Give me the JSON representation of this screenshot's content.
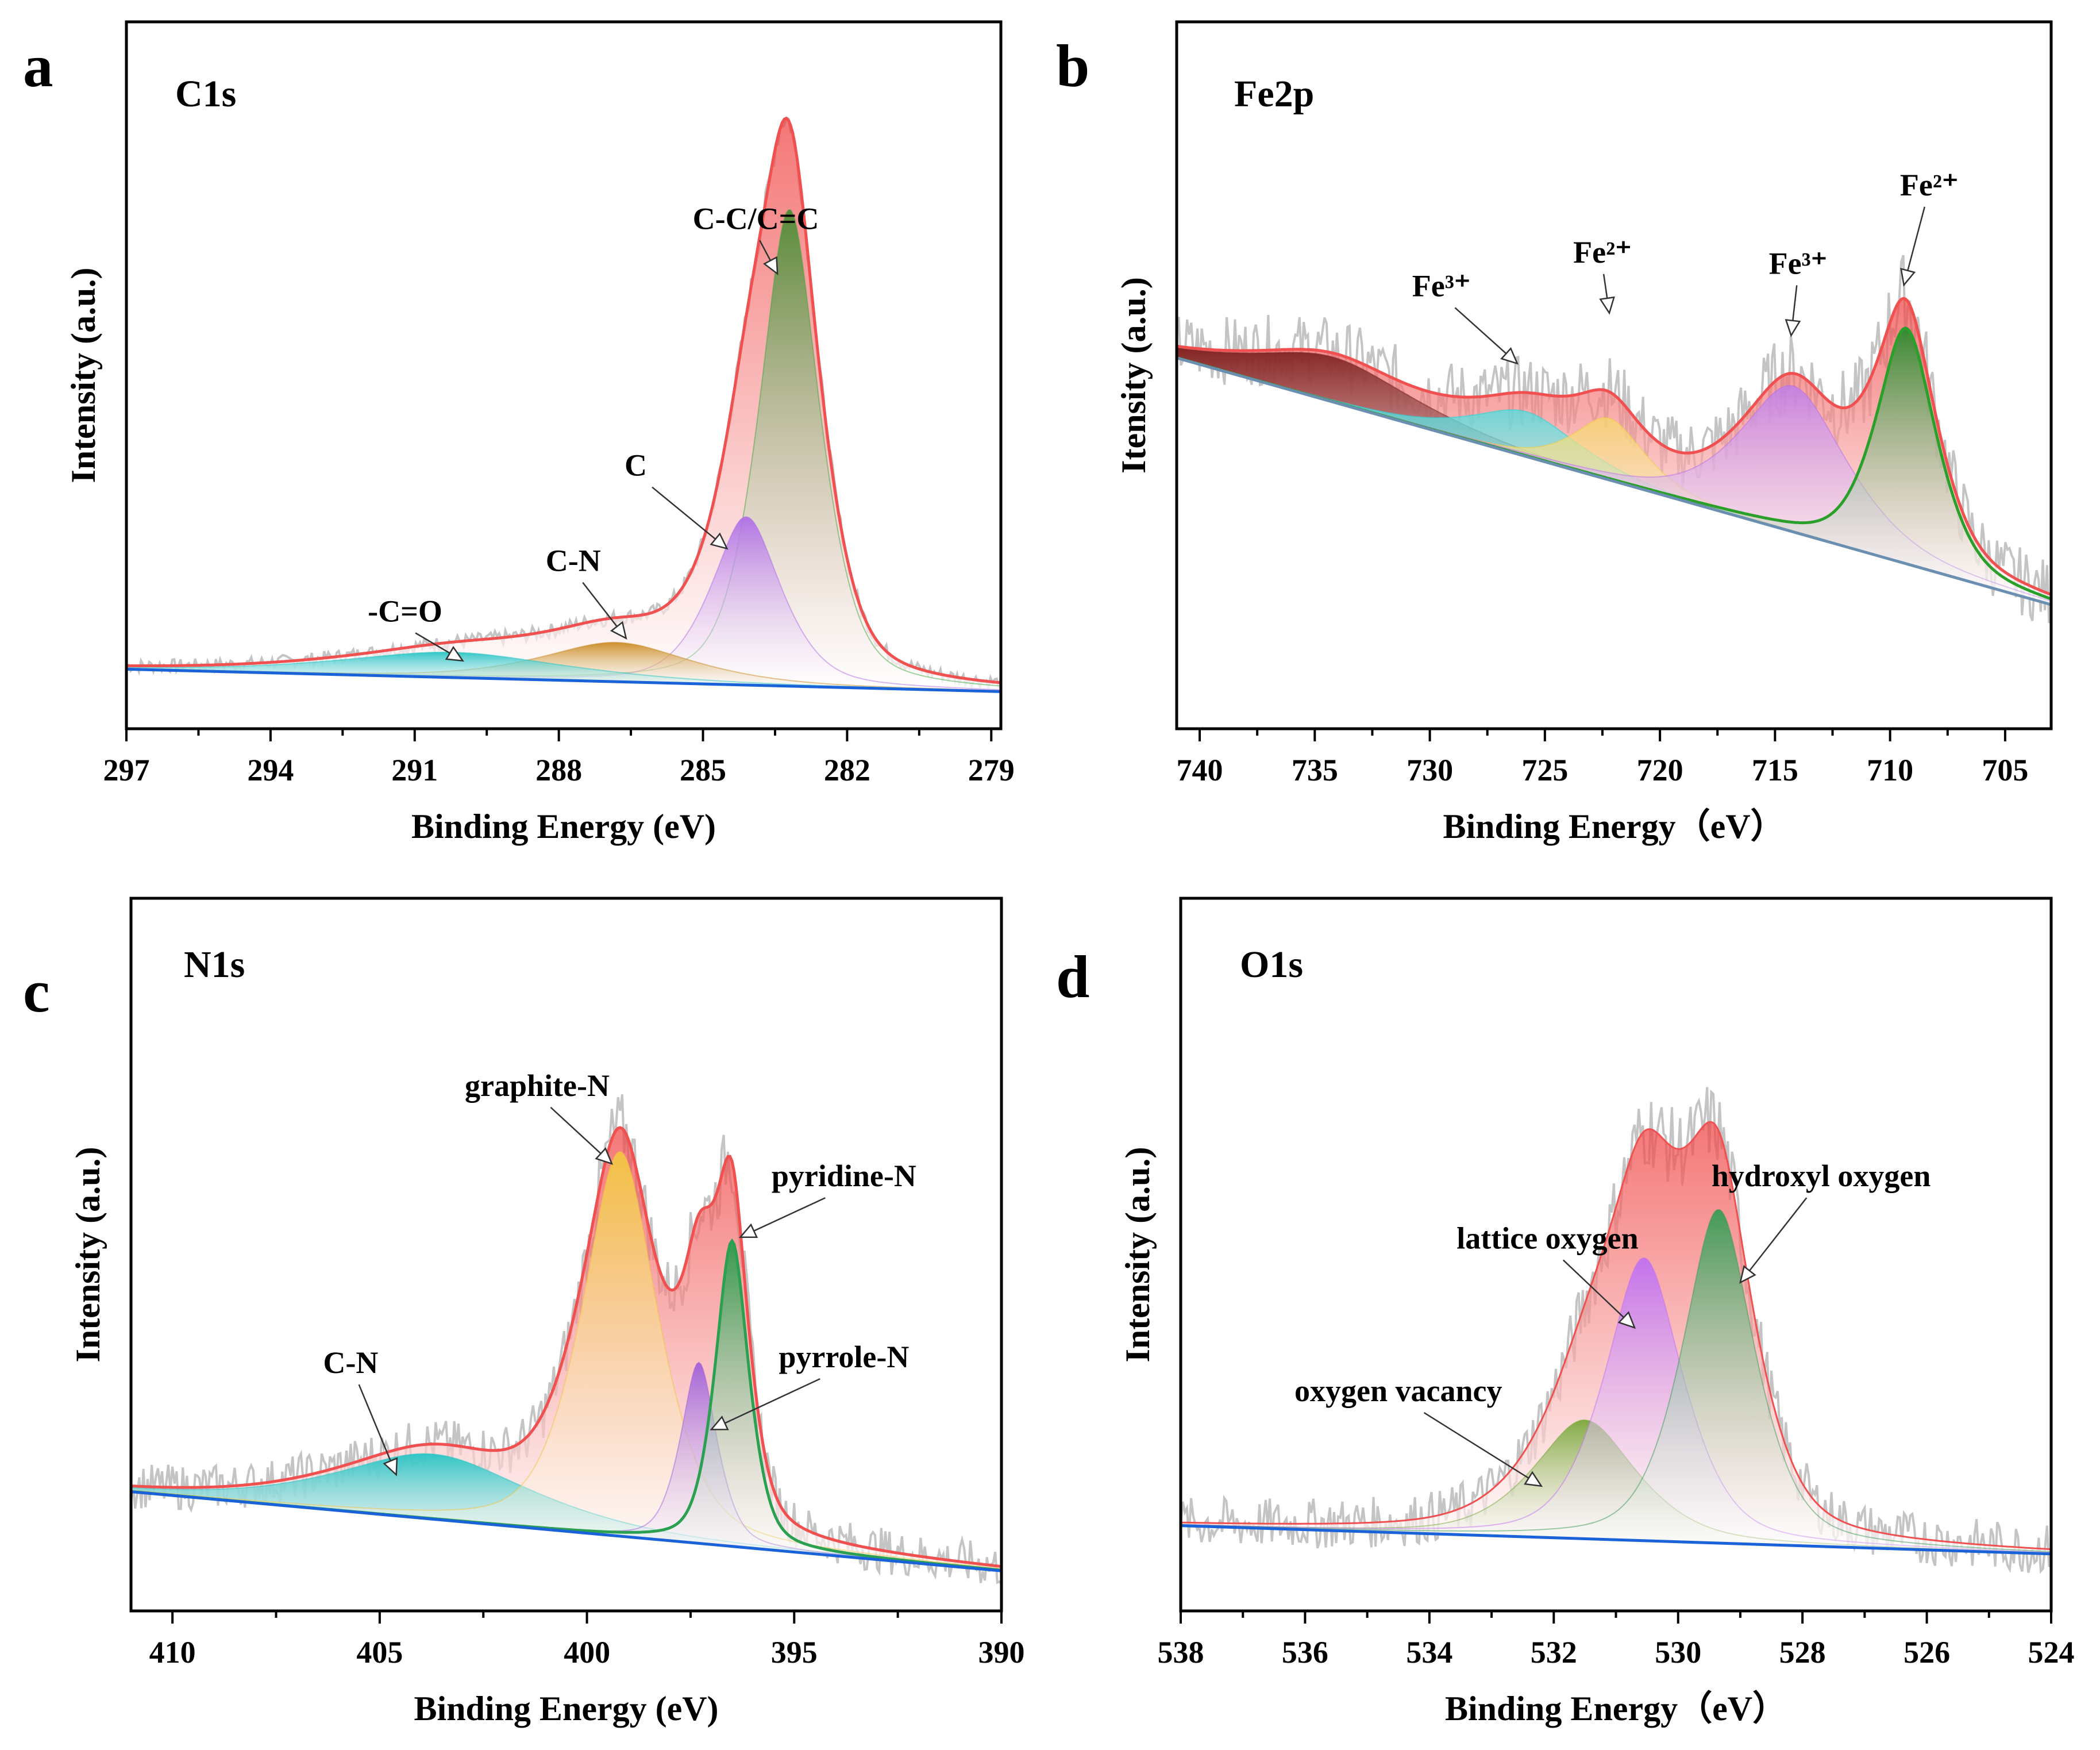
{
  "chart_data": [
    {
      "panel": "a",
      "title": "C1s",
      "type": "area",
      "xlabel": "Binding Energy (eV)",
      "ylabel": "Intensity (a.u.)",
      "xlim": [
        297,
        278.8
      ],
      "ylim": [
        0,
        100
      ],
      "xticks": [
        297,
        294,
        291,
        288,
        285,
        282,
        279
      ],
      "xtick_labels": [
        "297",
        "294",
        "291",
        "288",
        "285",
        "282",
        "279"
      ],
      "x_reversed": true,
      "baseline": {
        "start": 5.5,
        "end": 1.5
      },
      "raw_noise": 1.2,
      "series": [
        {
          "center": 283.2,
          "height": 85,
          "width": 0.65,
          "color": "#4e8a34",
          "edge": "#3ea83e",
          "show_line": false
        },
        {
          "center": 284.1,
          "height": 30,
          "width": 0.75,
          "color": "#b06ee6",
          "edge": "#b06ee6",
          "show_line": false
        },
        {
          "center": 286.8,
          "height": 7,
          "width": 1.6,
          "color": "#c98a22",
          "edge": "#c98a22",
          "show_line": false
        },
        {
          "center": 290.2,
          "height": 4.5,
          "width": 2.4,
          "color": "#27c4c4",
          "edge": "#27c4c4",
          "show_line": false
        }
      ],
      "annotations": [
        {
          "text": "C-C/C=C",
          "x": 283.9,
          "y": 84,
          "ax": 283.45,
          "ay": 76
        },
        {
          "text": "C",
          "x": 286.4,
          "y": 40,
          "ax": 284.5,
          "ay": 27
        },
        {
          "text": "C-N",
          "x": 287.7,
          "y": 23,
          "ax": 286.6,
          "ay": 11
        },
        {
          "text": "-C=O",
          "x": 291.2,
          "y": 14,
          "ax": 290.0,
          "ay": 7
        }
      ]
    },
    {
      "panel": "b",
      "title": "Fe2p",
      "type": "area",
      "xlabel": "Binding Energy（eV）",
      "ylabel": "Itensity (a.u.)",
      "xlim": [
        741,
        703
      ],
      "ylim": [
        0,
        100
      ],
      "xticks": [
        740,
        735,
        730,
        725,
        720,
        715,
        710,
        705
      ],
      "xtick_labels": [
        "740",
        "735",
        "730",
        "725",
        "720",
        "715",
        "710",
        "705"
      ],
      "x_reversed": true,
      "baseline": {
        "start": 61,
        "end": 17
      },
      "raw_noise": 6,
      "series": [
        {
          "center": 734.2,
          "height": 8,
          "width": 3.6,
          "color": "#7e1f1f",
          "edge": "#7e1f1f",
          "show_line": false
        },
        {
          "center": 725.8,
          "height": 8,
          "width": 2.4,
          "color": "#22d6d6",
          "edge": "#22d6d6",
          "show_line": false
        },
        {
          "center": 722.2,
          "height": 11,
          "width": 1.6,
          "color": "#f2cc3c",
          "edge": "#f2cc3c",
          "show_line": false
        },
        {
          "center": 714.2,
          "height": 26,
          "width": 2.4,
          "color": "#b86ee6",
          "edge": "#b86ee6",
          "show_line": false
        },
        {
          "center": 709.3,
          "height": 42,
          "width": 1.35,
          "color": "#2e8a2e",
          "edge": "#2aa02a",
          "show_line": true
        }
      ],
      "annotations": [
        {
          "text": "Fe³⁺",
          "x": 729.5,
          "y": 72,
          "ax": 726.2,
          "ay": 60
        },
        {
          "text": "Fe²⁺",
          "x": 722.5,
          "y": 78,
          "ax": 722.2,
          "ay": 69
        },
        {
          "text": "Fe³⁺",
          "x": 714.0,
          "y": 76,
          "ax": 714.3,
          "ay": 65
        },
        {
          "text": "Fe²⁺",
          "x": 708.3,
          "y": 90,
          "ax": 709.4,
          "ay": 74
        }
      ]
    },
    {
      "panel": "c",
      "title": "N1s",
      "type": "area",
      "xlabel": "Binding Energy (eV)",
      "ylabel": "Intensity (a.u.)",
      "xlim": [
        411,
        390
      ],
      "ylim": [
        0,
        100
      ],
      "xticks": [
        410,
        405,
        400,
        395,
        390
      ],
      "xtick_labels": [
        "410",
        "405",
        "400",
        "395",
        "390"
      ],
      "x_reversed": true,
      "baseline": {
        "start": 16,
        "end": 2
      },
      "raw_noise": 4,
      "series": [
        {
          "center": 403.7,
          "height": 11.5,
          "width": 2.4,
          "color": "#27c4c4",
          "edge": "#27c4c4",
          "show_line": false
        },
        {
          "center": 399.2,
          "height": 68,
          "width": 0.95,
          "color": "#f2c440",
          "edge": "#f2c440",
          "show_line": false
        },
        {
          "center": 397.3,
          "height": 32,
          "width": 0.45,
          "color": "#a060d8",
          "edge": "#a060d8",
          "show_line": false
        },
        {
          "center": 396.5,
          "height": 54,
          "width": 0.42,
          "color": "#2a9a4a",
          "edge": "#2aa050",
          "show_line": true
        }
      ],
      "annotations": [
        {
          "text": "graphite-N",
          "x": 401.2,
          "y": 86,
          "ax": 399.4,
          "ay": 74
        },
        {
          "text": "pyridine-N",
          "x": 393.8,
          "y": 70,
          "ax": 396.3,
          "ay": 61
        },
        {
          "text": "pyrrole-N",
          "x": 393.8,
          "y": 38,
          "ax": 397.0,
          "ay": 27
        },
        {
          "text": "C-N",
          "x": 405.7,
          "y": 37,
          "ax": 404.6,
          "ay": 19
        }
      ]
    },
    {
      "panel": "d",
      "title": "O1s",
      "type": "area",
      "xlabel": "Binding Energy（eV）",
      "ylabel": "Intensity (a.u.)",
      "xlim": [
        538,
        524
      ],
      "ylim": [
        0,
        100
      ],
      "xticks": [
        538,
        536,
        534,
        532,
        530,
        528,
        526,
        524
      ],
      "xtick_labels": [
        "538",
        "536",
        "534",
        "532",
        "530",
        "528",
        "526",
        "524"
      ],
      "x_reversed": true,
      "baseline": {
        "start": 10,
        "end": 5
      },
      "raw_noise": 4.5,
      "series": [
        {
          "center": 531.5,
          "height": 21,
          "width": 0.85,
          "color": "#7aa83a",
          "edge": "#7aa83a",
          "show_line": false
        },
        {
          "center": 530.55,
          "height": 50,
          "width": 0.65,
          "color": "#c070f0",
          "edge": "#c070f0",
          "show_line": false
        },
        {
          "center": 529.35,
          "height": 59,
          "width": 0.6,
          "color": "#3a9a55",
          "edge": "#3a9a55",
          "show_line": false
        }
      ],
      "annotations": [
        {
          "text": "hydroxyl oxygen",
          "x": 527.7,
          "y": 70,
          "ax": 529.0,
          "ay": 53
        },
        {
          "text": "lattice oxygen",
          "x": 532.1,
          "y": 59,
          "ax": 530.7,
          "ay": 45
        },
        {
          "text": "oxygen vacancy",
          "x": 534.5,
          "y": 32,
          "ax": 532.2,
          "ay": 17
        }
      ]
    }
  ]
}
